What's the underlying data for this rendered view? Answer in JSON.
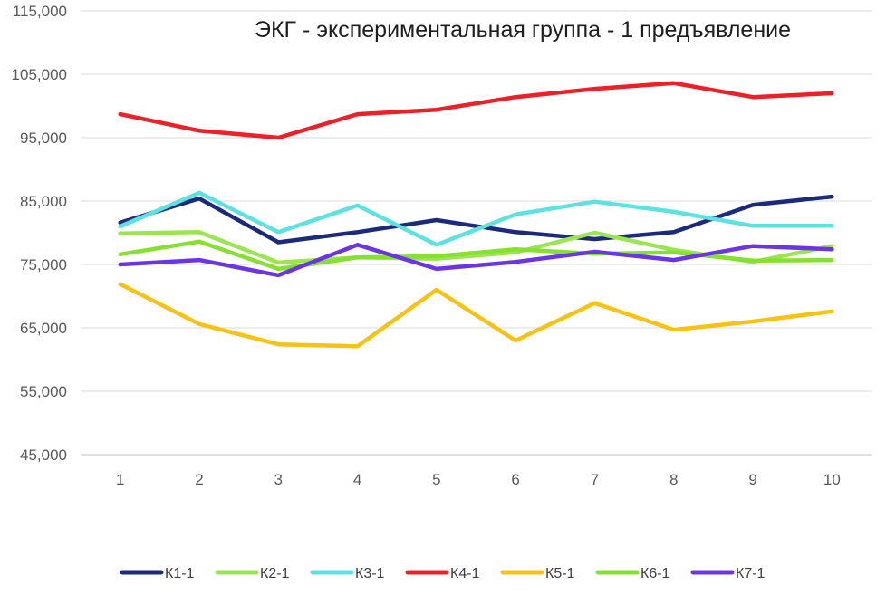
{
  "chart_data": {
    "type": "line",
    "title": "ЭКГ - экспериментальная группа - 1 предъявление",
    "xlabel": "",
    "ylabel": "",
    "categories": [
      "1",
      "2",
      "3",
      "4",
      "5",
      "6",
      "7",
      "8",
      "9",
      "10"
    ],
    "ylim": [
      45,
      115
    ],
    "y_ticks": [
      45,
      55,
      65,
      75,
      85,
      95,
      105,
      115
    ],
    "y_tick_labels": [
      "45,000",
      "55,000",
      "65,000",
      "75,000",
      "85,000",
      "95,000",
      "105,000",
      "115,000"
    ],
    "grid": "horizontal",
    "legend": "bottom",
    "series": [
      {
        "name": "К1-1",
        "color": "#1B2A7C",
        "values": [
          81.6,
          85.4,
          78.5,
          80.1,
          82.0,
          80.1,
          79.0,
          80.1,
          84.4,
          85.7
        ]
      },
      {
        "name": "К2-1",
        "color": "#9BE553",
        "values": [
          79.9,
          80.1,
          75.3,
          76.1,
          75.9,
          76.9,
          80.0,
          77.3,
          75.4,
          77.9
        ]
      },
      {
        "name": "К3-1",
        "color": "#5DE2E0",
        "values": [
          81.0,
          86.3,
          80.1,
          84.3,
          78.1,
          82.9,
          84.9,
          83.3,
          81.1,
          81.1
        ]
      },
      {
        "name": "К4-1",
        "color": "#EC2027",
        "values": [
          98.7,
          96.1,
          95.0,
          98.7,
          99.4,
          101.4,
          102.7,
          103.6,
          101.4,
          102.0
        ]
      },
      {
        "name": "К5-1",
        "color": "#F6C315",
        "values": [
          71.9,
          65.6,
          62.4,
          62.1,
          71.0,
          63.0,
          68.9,
          64.7,
          66.0,
          67.6
        ]
      },
      {
        "name": "К6-1",
        "color": "#86E02E",
        "values": [
          76.6,
          78.6,
          74.3,
          76.1,
          76.3,
          77.4,
          76.7,
          76.9,
          75.6,
          75.7
        ]
      },
      {
        "name": "К7-1",
        "color": "#6B35E6",
        "values": [
          75.0,
          75.7,
          73.3,
          78.1,
          74.3,
          75.4,
          77.0,
          75.7,
          77.9,
          77.4
        ]
      }
    ]
  }
}
